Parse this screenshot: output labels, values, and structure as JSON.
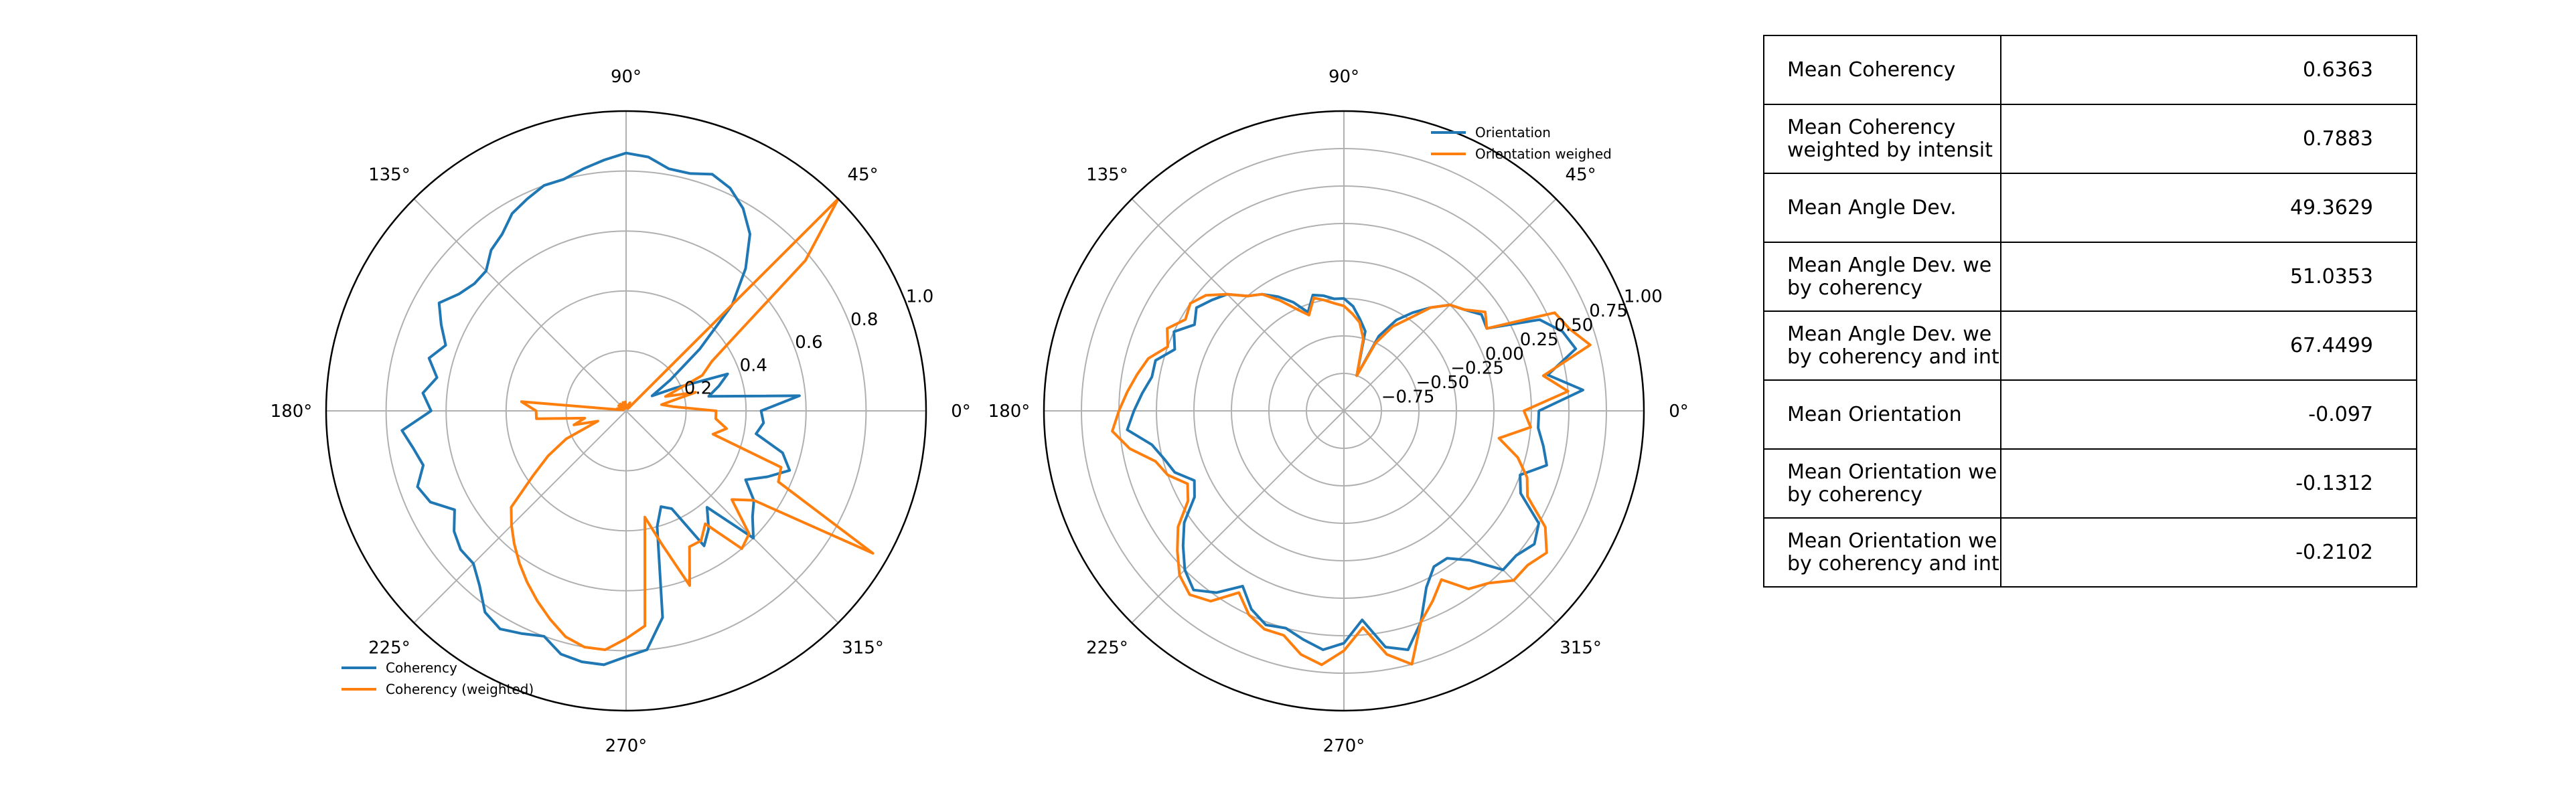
{
  "chart_data": [
    {
      "type": "line",
      "subtype": "polar",
      "angle_ticks_deg": [
        0,
        45,
        90,
        135,
        180,
        225,
        270,
        315
      ],
      "angle_tick_labels": [
        "0°",
        "45°",
        "90°",
        "135°",
        "180°",
        "225°",
        "270°",
        "315°"
      ],
      "rlim": [
        0.0,
        1.0
      ],
      "r_ticks": [
        0.2,
        0.4,
        0.6,
        0.8,
        1.0
      ],
      "r_tick_labels": [
        "0.2",
        "0.4",
        "0.6",
        "0.8",
        "1.0"
      ],
      "r_label_angle_deg": 22.5,
      "grid": true,
      "legend_position": "lower-left",
      "series": [
        {
          "name": "Coherency",
          "color": "#1f77b4",
          "theta_deg": [
            0,
            5,
            10,
            15,
            20,
            25,
            30,
            35,
            40,
            45,
            50,
            55,
            60,
            65,
            70,
            75,
            80,
            85,
            90,
            95,
            100,
            105,
            110,
            115,
            120,
            125,
            130,
            135,
            140,
            145,
            150,
            155,
            160,
            165,
            170,
            175,
            180,
            185,
            190,
            195,
            200,
            205,
            210,
            215,
            220,
            225,
            230,
            235,
            240,
            245,
            250,
            255,
            260,
            265,
            270,
            275,
            280,
            285,
            290,
            295,
            300,
            305,
            310,
            315,
            320,
            325,
            330,
            335,
            340,
            345,
            350,
            355
          ],
          "r": [
            0.45,
            0.58,
            0.28,
            0.32,
            0.36,
            0.18,
            0.1,
            0.18,
            0.32,
            0.5,
            0.62,
            0.72,
            0.78,
            0.82,
            0.84,
            0.82,
            0.82,
            0.85,
            0.86,
            0.84,
            0.82,
            0.8,
            0.8,
            0.78,
            0.76,
            0.72,
            0.7,
            0.66,
            0.66,
            0.68,
            0.72,
            0.68,
            0.64,
            0.68,
            0.64,
            0.68,
            0.65,
            0.75,
            0.72,
            0.7,
            0.74,
            0.72,
            0.66,
            0.7,
            0.72,
            0.72,
            0.76,
            0.82,
            0.84,
            0.82,
            0.8,
            0.84,
            0.85,
            0.85,
            0.82,
            0.8,
            0.7,
            0.4,
            0.34,
            0.36,
            0.52,
            0.48,
            0.42,
            0.6,
            0.55,
            0.52,
            0.46,
            0.52,
            0.58,
            0.54,
            0.44,
            0.46
          ]
        },
        {
          "name": "Coherency (weighted)",
          "color": "#ff7f0e",
          "theta_deg": [
            0,
            5,
            10,
            15,
            20,
            25,
            30,
            35,
            40,
            45,
            50,
            55,
            60,
            65,
            70,
            75,
            80,
            85,
            90,
            95,
            100,
            105,
            110,
            115,
            120,
            125,
            130,
            135,
            140,
            145,
            150,
            155,
            160,
            165,
            170,
            175,
            180,
            185,
            190,
            195,
            200,
            205,
            210,
            215,
            220,
            225,
            230,
            235,
            240,
            245,
            250,
            255,
            260,
            265,
            270,
            275,
            280,
            285,
            290,
            295,
            300,
            305,
            310,
            315,
            320,
            325,
            330,
            335,
            340,
            345,
            350,
            355
          ],
          "r": [
            0.3,
            0.16,
            0.12,
            0.24,
            0.14,
            0.28,
            0.33,
            0.46,
            0.78,
            1.0,
            0.01,
            0.02,
            0.01,
            0.03,
            0.02,
            0.01,
            0.02,
            0.02,
            0.01,
            0.03,
            0.02,
            0.01,
            0.03,
            0.02,
            0.01,
            0.02,
            0.03,
            0.02,
            0.01,
            0.03,
            0.02,
            0.02,
            0.01,
            0.03,
            0.02,
            0.35,
            0.3,
            0.3,
            0.14,
            0.18,
            0.1,
            0.22,
            0.3,
            0.38,
            0.5,
            0.54,
            0.58,
            0.62,
            0.66,
            0.7,
            0.74,
            0.78,
            0.8,
            0.8,
            0.76,
            0.72,
            0.36,
            0.46,
            0.62,
            0.5,
            0.5,
            0.46,
            0.6,
            0.58,
            0.46,
            0.52,
            0.95,
            0.56,
            0.55,
            0.3,
            0.34,
            0.3
          ]
        }
      ]
    },
    {
      "type": "line",
      "subtype": "polar",
      "angle_ticks_deg": [
        0,
        45,
        90,
        135,
        180,
        225,
        270,
        315
      ],
      "angle_tick_labels": [
        "0°",
        "45°",
        "90°",
        "135°",
        "180°",
        "225°",
        "270°",
        "315°"
      ],
      "rlim": [
        -1.0,
        1.0
      ],
      "r_ticks": [
        -0.75,
        -0.5,
        -0.25,
        0.0,
        0.25,
        0.5,
        0.75,
        1.0
      ],
      "r_tick_labels": [
        "−0.75",
        "−0.50",
        "−0.25",
        "0.00",
        "0.25",
        "0.50",
        "0.75",
        "1.00"
      ],
      "r_label_angle_deg": 22.5,
      "grid": true,
      "legend_position": "upper-right",
      "series": [
        {
          "name": "Orientation",
          "color": "#1f77b4",
          "theta_deg": [
            0,
            5,
            10,
            15,
            20,
            25,
            30,
            35,
            40,
            45,
            50,
            55,
            60,
            65,
            70,
            75,
            80,
            85,
            90,
            95,
            100,
            105,
            110,
            115,
            120,
            125,
            130,
            135,
            140,
            145,
            150,
            155,
            160,
            165,
            170,
            175,
            180,
            185,
            190,
            195,
            200,
            205,
            210,
            215,
            220,
            225,
            230,
            235,
            240,
            245,
            250,
            255,
            260,
            265,
            270,
            275,
            280,
            285,
            290,
            295,
            300,
            305,
            310,
            315,
            320,
            325,
            330,
            335,
            340,
            345,
            350,
            355
          ],
          "r": [
            0.3,
            0.6,
            0.38,
            0.6,
            0.55,
            0.44,
            0.1,
            0.12,
            0.05,
            0.0,
            -0.1,
            -0.2,
            -0.3,
            -0.45,
            -0.75,
            -0.45,
            -0.38,
            -0.3,
            -0.25,
            -0.25,
            -0.22,
            -0.2,
            -0.3,
            -0.2,
            -0.12,
            -0.05,
            0.0,
            0.1,
            0.15,
            0.2,
            0.15,
            0.25,
            0.2,
            0.3,
            0.3,
            0.35,
            0.4,
            0.45,
            0.3,
            0.24,
            0.2,
            0.1,
            0.15,
            0.3,
            0.4,
            0.5,
            0.56,
            0.48,
            0.35,
            0.46,
            0.52,
            0.5,
            0.55,
            0.6,
            0.55,
            0.4,
            0.6,
            0.65,
            0.5,
            0.3,
            0.2,
            0.2,
            0.3,
            0.5,
            0.5,
            0.55,
            0.5,
            0.3,
            0.25,
            0.4,
            0.35,
            0.3
          ]
        },
        {
          "name": "Orientation weighed",
          "color": "#ff7f0e",
          "theta_deg": [
            0,
            5,
            10,
            15,
            20,
            25,
            30,
            35,
            40,
            45,
            50,
            55,
            60,
            65,
            70,
            75,
            80,
            85,
            90,
            95,
            100,
            105,
            110,
            115,
            120,
            125,
            130,
            135,
            140,
            145,
            150,
            155,
            160,
            165,
            170,
            175,
            180,
            185,
            190,
            195,
            200,
            205,
            210,
            215,
            220,
            225,
            230,
            235,
            240,
            245,
            250,
            255,
            260,
            265,
            270,
            275,
            280,
            285,
            290,
            295,
            300,
            305,
            310,
            315,
            320,
            325,
            330,
            335,
            340,
            345,
            350,
            355
          ],
          "r": [
            0.2,
            0.5,
            0.35,
            0.7,
            0.6,
            0.55,
            0.1,
            0.15,
            0.05,
            0.0,
            -0.1,
            -0.25,
            -0.35,
            -0.5,
            -0.75,
            -0.5,
            -0.4,
            -0.35,
            -0.3,
            -0.28,
            -0.25,
            -0.22,
            -0.32,
            -0.25,
            -0.15,
            -0.05,
            0.0,
            0.1,
            0.2,
            0.25,
            0.22,
            0.3,
            0.25,
            0.35,
            0.4,
            0.45,
            0.5,
            0.55,
            0.45,
            0.3,
            0.25,
            0.15,
            0.2,
            0.35,
            0.45,
            0.55,
            0.6,
            0.55,
            0.4,
            0.5,
            0.55,
            0.55,
            0.65,
            0.7,
            0.6,
            0.45,
            0.65,
            0.75,
            0.5,
            0.4,
            0.3,
            0.45,
            0.5,
            0.6,
            0.6,
            0.65,
            0.55,
            0.35,
            0.3,
            0.2,
            0.05,
            0.25
          ]
        }
      ]
    }
  ],
  "stats_table": {
    "rows": [
      {
        "label": "Mean Coherency",
        "value": "0.6363"
      },
      {
        "label": "Mean Coherency\nweighted by intensit",
        "value": "0.7883"
      },
      {
        "label": "Mean Angle Dev.",
        "value": "49.3629"
      },
      {
        "label": "Mean Angle Dev. we\nby coherency",
        "value": "51.0353"
      },
      {
        "label": "Mean Angle Dev. we\nby coherency and int",
        "value": "67.4499"
      },
      {
        "label": "Mean Orientation",
        "value": "-0.097"
      },
      {
        "label": "Mean Orientation we\nby coherency",
        "value": "-0.1312"
      },
      {
        "label": "Mean Orientation we\nby coherency and int",
        "value": "-0.2102"
      }
    ]
  }
}
